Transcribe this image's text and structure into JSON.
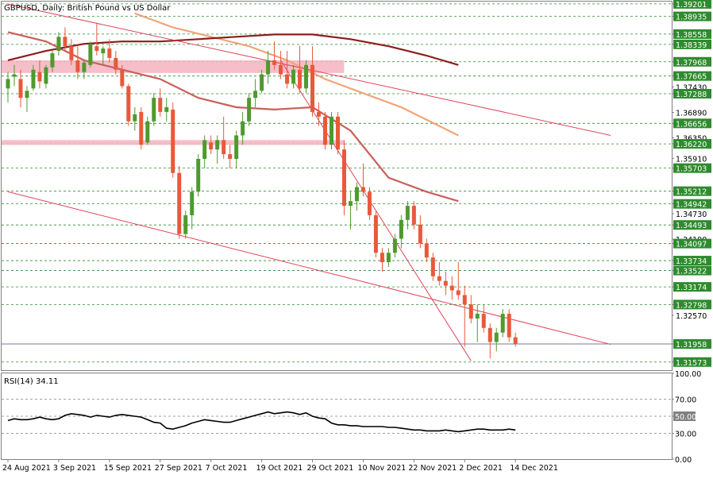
{
  "chart_data": [
    {
      "type": "candlestick",
      "title": "GBPUSD, Daily: British Pound vs US Dollar",
      "ylim": [
        1.314,
        1.3925
      ],
      "price_levels": [
        "1.39201",
        "1.38935",
        "1.38558",
        "1.38339",
        "1.37968",
        "1.37665",
        "1.37288",
        "1.36656",
        "1.36220",
        "1.35703",
        "1.35212",
        "1.34942",
        "1.34493",
        "1.34097",
        "1.33734",
        "1.33522",
        "1.33174",
        "1.32798",
        "1.31958",
        "1.31573"
      ],
      "price_level_values": [
        1.39201,
        1.38935,
        1.38558,
        1.38339,
        1.37968,
        1.37665,
        1.37288,
        1.36656,
        1.3622,
        1.35703,
        1.35212,
        1.34942,
        1.34493,
        1.34097,
        1.33734,
        1.33522,
        1.33174,
        1.32798,
        1.31958,
        1.31573
      ],
      "axis_ticks": [
        "1.39201",
        "1.38935",
        "1.38558",
        "1.38339",
        "1.37968",
        "1.37665",
        "1.37430",
        "1.37288",
        "1.36890",
        "1.36656",
        "1.36350",
        "1.36220",
        "1.35910",
        "1.35703",
        "1.35212",
        "1.34942",
        "1.34730",
        "1.34493",
        "1.34190",
        "1.34097",
        "1.33734",
        "1.33522",
        "1.33174",
        "1.32798",
        "1.32570",
        "1.31958",
        "1.31573"
      ],
      "axis_tick_values": [
        1.39201,
        1.38935,
        1.38558,
        1.38339,
        1.37968,
        1.37665,
        1.3743,
        1.37288,
        1.3689,
        1.36656,
        1.3635,
        1.3622,
        1.3591,
        1.35703,
        1.35212,
        1.34942,
        1.3473,
        1.34493,
        1.3419,
        1.34097,
        1.33734,
        1.33522,
        1.33174,
        1.32798,
        1.3257,
        1.31958,
        1.31573
      ],
      "highlighted_levels": [
        "1.39201",
        "1.38935",
        "1.38558",
        "1.38339",
        "1.37968",
        "1.37665",
        "1.37288",
        "1.36656",
        "1.36220",
        "1.35703",
        "1.35212",
        "1.34942",
        "1.34493",
        "1.34097",
        "1.33734",
        "1.33522",
        "1.33174",
        "1.32798",
        "1.31958",
        "1.31573"
      ],
      "current_price": 1.31958,
      "x_labels": [
        "24 Aug 2021",
        "3 Sep 2021",
        "15 Sep 2021",
        "27 Sep 2021",
        "7 Oct 2021",
        "19 Oct 2021",
        "29 Oct 2021",
        "10 Nov 2021",
        "22 Nov 2021",
        "2 Dec 2021",
        "14 Dec 2021"
      ],
      "x_label_index": [
        0,
        8,
        16,
        24,
        32,
        40,
        48,
        56,
        64,
        72,
        80
      ],
      "colors": {
        "bull": "#4e9a2e",
        "bear": "#e8593a",
        "grid": "#2e8b2e",
        "trend": "#e0455a",
        "zone": "#f5b3c0",
        "ma_fast": "#c9605a",
        "ma_mid": "#f2a47a",
        "ma_slow": "#8b1e1e",
        "current_line": "#7a7a9a"
      },
      "ohlc": [
        [
          1.374,
          1.3775,
          1.371,
          1.376
        ],
        [
          1.3765,
          1.379,
          1.3745,
          1.377
        ],
        [
          1.376,
          1.378,
          1.37,
          1.372
        ],
        [
          1.372,
          1.3745,
          1.369,
          1.3735
        ],
        [
          1.374,
          1.379,
          1.3735,
          1.378
        ],
        [
          1.3775,
          1.38,
          1.374,
          1.3755
        ],
        [
          1.375,
          1.379,
          1.374,
          1.3785
        ],
        [
          1.3785,
          1.382,
          1.3775,
          1.3815
        ],
        [
          1.382,
          1.386,
          1.381,
          1.385
        ],
        [
          1.385,
          1.387,
          1.382,
          1.383
        ],
        [
          1.383,
          1.3845,
          1.379,
          1.38
        ],
        [
          1.38,
          1.383,
          1.376,
          1.3775
        ],
        [
          1.3775,
          1.38,
          1.376,
          1.3795
        ],
        [
          1.379,
          1.384,
          1.3785,
          1.3835
        ],
        [
          1.383,
          1.388,
          1.381,
          1.382
        ],
        [
          1.3815,
          1.383,
          1.379,
          1.3825
        ],
        [
          1.3825,
          1.3845,
          1.3795,
          1.3805
        ],
        [
          1.3805,
          1.382,
          1.377,
          1.378
        ],
        [
          1.378,
          1.379,
          1.374,
          1.3745
        ],
        [
          1.3745,
          1.375,
          1.366,
          1.367
        ],
        [
          1.367,
          1.37,
          1.365,
          1.3685
        ],
        [
          1.369,
          1.37,
          1.361,
          1.362
        ],
        [
          1.3625,
          1.368,
          1.362,
          1.367
        ],
        [
          1.367,
          1.373,
          1.366,
          1.372
        ],
        [
          1.372,
          1.374,
          1.368,
          1.369
        ],
        [
          1.369,
          1.372,
          1.367,
          1.37
        ],
        [
          1.3695,
          1.371,
          1.355,
          1.356
        ],
        [
          1.356,
          1.3575,
          1.342,
          1.343
        ],
        [
          1.343,
          1.348,
          1.342,
          1.347
        ],
        [
          1.347,
          1.353,
          1.344,
          1.352
        ],
        [
          1.352,
          1.36,
          1.351,
          1.359
        ],
        [
          1.359,
          1.364,
          1.357,
          1.363
        ],
        [
          1.3625,
          1.364,
          1.36,
          1.361
        ],
        [
          1.361,
          1.364,
          1.358,
          1.363
        ],
        [
          1.363,
          1.368,
          1.359,
          1.36
        ],
        [
          1.36,
          1.362,
          1.357,
          1.359
        ],
        [
          1.359,
          1.365,
          1.357,
          1.364
        ],
        [
          1.364,
          1.369,
          1.362,
          1.367
        ],
        [
          1.367,
          1.373,
          1.366,
          1.372
        ],
        [
          1.372,
          1.376,
          1.37,
          1.3735
        ],
        [
          1.3735,
          1.378,
          1.373,
          1.377
        ],
        [
          1.377,
          1.382,
          1.375,
          1.38
        ],
        [
          1.38,
          1.384,
          1.378,
          1.379
        ],
        [
          1.379,
          1.382,
          1.376,
          1.377
        ],
        [
          1.377,
          1.382,
          1.374,
          1.375
        ],
        [
          1.375,
          1.379,
          1.374,
          1.378
        ],
        [
          1.378,
          1.383,
          1.373,
          1.374
        ],
        [
          1.374,
          1.38,
          1.373,
          1.379
        ],
        [
          1.379,
          1.383,
          1.368,
          1.369
        ],
        [
          1.369,
          1.371,
          1.366,
          1.368
        ],
        [
          1.368,
          1.369,
          1.361,
          1.362
        ],
        [
          1.362,
          1.369,
          1.361,
          1.368
        ],
        [
          1.368,
          1.369,
          1.36,
          1.361
        ],
        [
          1.361,
          1.363,
          1.347,
          1.349
        ],
        [
          1.349,
          1.352,
          1.344,
          1.35
        ],
        [
          1.35,
          1.354,
          1.348,
          1.353
        ],
        [
          1.353,
          1.358,
          1.351,
          1.352
        ],
        [
          1.352,
          1.353,
          1.346,
          1.347
        ],
        [
          1.347,
          1.348,
          1.338,
          1.339
        ],
        [
          1.339,
          1.34,
          1.335,
          1.337
        ],
        [
          1.337,
          1.34,
          1.336,
          1.339
        ],
        [
          1.339,
          1.343,
          1.338,
          1.342
        ],
        [
          1.342,
          1.347,
          1.34,
          1.346
        ],
        [
          1.346,
          1.35,
          1.344,
          1.349
        ],
        [
          1.349,
          1.35,
          1.344,
          1.345
        ],
        [
          1.345,
          1.347,
          1.34,
          1.341
        ],
        [
          1.341,
          1.342,
          1.337,
          1.338
        ],
        [
          1.338,
          1.339,
          1.333,
          1.334
        ],
        [
          1.334,
          1.337,
          1.332,
          1.333
        ],
        [
          1.333,
          1.335,
          1.33,
          1.332
        ],
        [
          1.332,
          1.334,
          1.329,
          1.331
        ],
        [
          1.331,
          1.337,
          1.329,
          1.33
        ],
        [
          1.33,
          1.332,
          1.319,
          1.328
        ],
        [
          1.328,
          1.33,
          1.324,
          1.325
        ],
        [
          1.325,
          1.328,
          1.32,
          1.326
        ],
        [
          1.326,
          1.328,
          1.322,
          1.323
        ],
        [
          1.323,
          1.324,
          1.3165,
          1.32
        ],
        [
          1.32,
          1.323,
          1.318,
          1.322
        ],
        [
          1.322,
          1.327,
          1.321,
          1.326
        ],
        [
          1.326,
          1.327,
          1.32,
          1.321
        ],
        [
          1.321,
          1.322,
          1.319,
          1.3196
        ]
      ],
      "moving_averages": [
        {
          "name": "",
          "color": "#c9605a",
          "points": [
            [
              0,
              1.386
            ],
            [
              6,
              1.384
            ],
            [
              12,
              1.38
            ],
            [
              18,
              1.378
            ],
            [
              24,
              1.376
            ],
            [
              30,
              1.372
            ],
            [
              36,
              1.37
            ],
            [
              42,
              1.3695
            ],
            [
              48,
              1.37
            ],
            [
              54,
              1.365
            ],
            [
              60,
              1.355
            ],
            [
              66,
              1.352
            ],
            [
              71,
              1.35
            ]
          ]
        },
        {
          "name": "",
          "color": "#f2a47a",
          "points": [
            [
              20,
              1.39
            ],
            [
              26,
              1.387
            ],
            [
              32,
              1.385
            ],
            [
              38,
              1.383
            ],
            [
              44,
              1.38
            ],
            [
              50,
              1.376
            ],
            [
              56,
              1.373
            ],
            [
              62,
              1.37
            ],
            [
              68,
              1.366
            ],
            [
              71,
              1.364
            ]
          ]
        },
        {
          "name": "",
          "color": "#8b1e1e",
          "points": [
            [
              0,
              1.38
            ],
            [
              6,
              1.382
            ],
            [
              12,
              1.3835
            ],
            [
              18,
              1.384
            ],
            [
              24,
              1.384
            ],
            [
              30,
              1.3845
            ],
            [
              36,
              1.385
            ],
            [
              42,
              1.3855
            ],
            [
              48,
              1.3855
            ],
            [
              54,
              1.3845
            ],
            [
              60,
              1.383
            ],
            [
              66,
              1.381
            ],
            [
              71,
              1.379
            ]
          ]
        }
      ],
      "trendlines": [
        {
          "from": [
            0,
            1.392
          ],
          "to": [
            95,
            1.364
          ]
        },
        {
          "from": [
            0,
            1.352
          ],
          "to": [
            95,
            1.3195
          ]
        },
        {
          "from": [
            43,
            1.38
          ],
          "to": [
            73,
            1.316
          ]
        }
      ],
      "zones": [
        {
          "from_index": 0,
          "to_index": 53,
          "low": 1.3773,
          "high": 1.38
        },
        {
          "from_index": 0,
          "to_index": 53,
          "low": 1.362,
          "high": 1.363
        }
      ]
    },
    {
      "type": "line",
      "title": "RSI(14) 34.11",
      "ylim": [
        0,
        100
      ],
      "ticks": [
        "100.00",
        "70.00",
        "50.00",
        "30.00",
        "0.00"
      ],
      "tick_values": [
        100,
        70,
        50,
        30,
        0
      ],
      "highlighted_tick": "50.00",
      "levels": [
        70,
        50,
        30
      ],
      "values": [
        45,
        47,
        46,
        46,
        47,
        49,
        47,
        46,
        47,
        51,
        53,
        52,
        51,
        49,
        51,
        50,
        49,
        51,
        52,
        51,
        50,
        49,
        46,
        43,
        42,
        36,
        35,
        37,
        39,
        42,
        44,
        46,
        45,
        44,
        43,
        43,
        45,
        47,
        49,
        51,
        53,
        55,
        53,
        54,
        55,
        54,
        52,
        54,
        50,
        48,
        47,
        42,
        40,
        40,
        39,
        39,
        38,
        38,
        38,
        38,
        37,
        37,
        36,
        35,
        34,
        34,
        33,
        33,
        33,
        34,
        33,
        32,
        33,
        34,
        35,
        35,
        34,
        34,
        34,
        35,
        34
      ]
    }
  ]
}
